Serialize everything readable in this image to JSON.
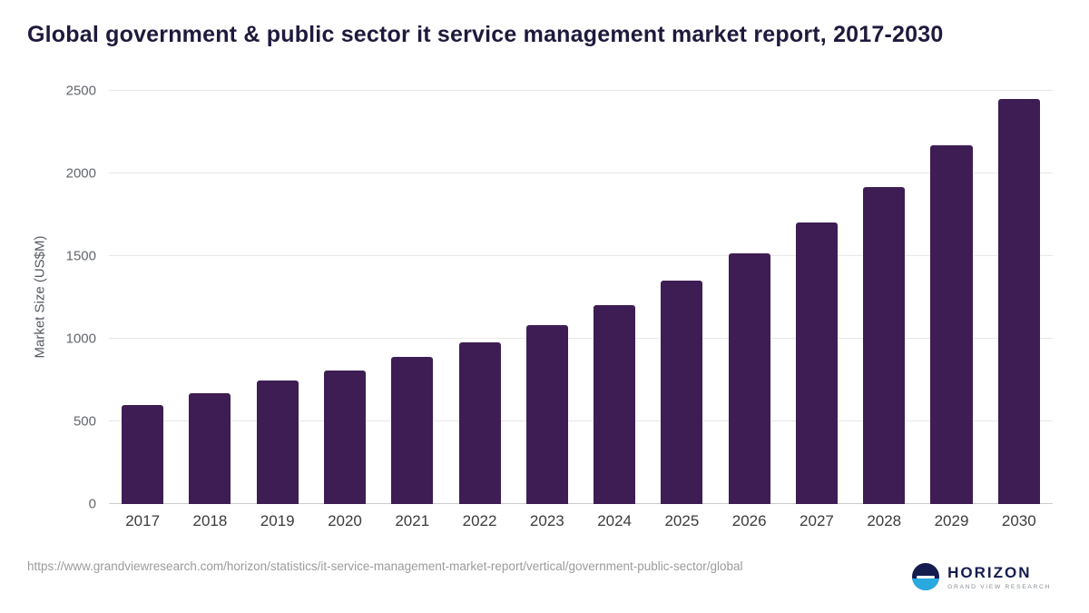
{
  "header": {
    "title": "Global government & public sector it service management market report, 2017-2030"
  },
  "chart_data": {
    "type": "bar",
    "title": "Global government & public sector it service management market report, 2017-2030",
    "categories": [
      "2017",
      "2018",
      "2019",
      "2020",
      "2021",
      "2022",
      "2023",
      "2024",
      "2025",
      "2026",
      "2027",
      "2028",
      "2029",
      "2030"
    ],
    "values": [
      600,
      670,
      745,
      810,
      890,
      980,
      1085,
      1205,
      1350,
      1515,
      1705,
      1920,
      2170,
      2450
    ],
    "xlabel": "",
    "ylabel": "Market Size (US$M)",
    "ylim": [
      0,
      2500
    ],
    "yticks": [
      0,
      500,
      1000,
      1500,
      2000,
      2500
    ],
    "grid": "horizontal",
    "legend_position": "none",
    "bar_color": "#3d1d53"
  },
  "footer": {
    "source_url": "https://www.grandviewresearch.com/horizon/statistics/it-service-management-market-report/vertical/government-public-sector/global",
    "logo": {
      "brand": "HORIZON",
      "tagline": "GRAND VIEW RESEARCH"
    }
  },
  "colors": {
    "title_text": "#1e1a3c",
    "bar": "#3d1d53",
    "axis_text": "#63676d",
    "x_label_text": "#3c3c3c",
    "gridline": "#e8e8e8",
    "source_text": "#9b9b9b",
    "logo_navy": "#151c4e",
    "logo_blue": "#2aa9e0"
  }
}
